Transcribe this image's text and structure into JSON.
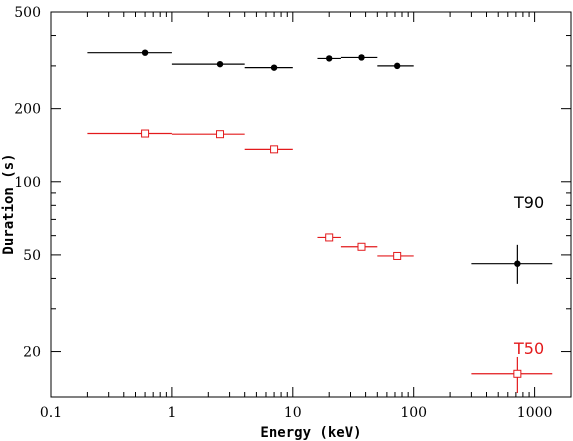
{
  "chart_data": {
    "type": "scatter",
    "title": "",
    "xlabel": "Energy (keV)",
    "ylabel": "Duration (s)",
    "xscale": "log",
    "yscale": "log",
    "xlim": [
      0.1,
      2000
    ],
    "ylim": [
      13,
      500
    ],
    "x_ticks": [
      0.1,
      1,
      10,
      100,
      1000
    ],
    "x_tick_labels": [
      "0.1",
      "1",
      "10",
      "100",
      "1000"
    ],
    "y_ticks": [
      20,
      50,
      100,
      200,
      500
    ],
    "y_tick_labels": [
      "20",
      "50",
      "100",
      "200",
      "500"
    ],
    "grid": false,
    "legend": "none",
    "series": [
      {
        "name": "T90",
        "color": "#000000",
        "marker": "filled-circle",
        "points": [
          {
            "x": 0.6,
            "y": 340,
            "xlo": 0.2,
            "xhi": 1.0,
            "ylo": 340,
            "yhi": 340
          },
          {
            "x": 2.5,
            "y": 305,
            "xlo": 1.0,
            "xhi": 4.0,
            "ylo": 305,
            "yhi": 305
          },
          {
            "x": 7.0,
            "y": 295,
            "xlo": 4.0,
            "xhi": 10.0,
            "ylo": 295,
            "yhi": 295
          },
          {
            "x": 20,
            "y": 322,
            "xlo": 16,
            "xhi": 25,
            "ylo": 322,
            "yhi": 322
          },
          {
            "x": 37,
            "y": 325,
            "xlo": 25,
            "xhi": 50,
            "ylo": 325,
            "yhi": 325
          },
          {
            "x": 73,
            "y": 300,
            "xlo": 50,
            "xhi": 100,
            "ylo": 300,
            "yhi": 300
          },
          {
            "x": 720,
            "y": 46,
            "xlo": 300,
            "xhi": 1400,
            "ylo": 38,
            "yhi": 55
          }
        ]
      },
      {
        "name": "T50",
        "color": "#e31a1c",
        "marker": "open-square",
        "points": [
          {
            "x": 0.6,
            "y": 158,
            "xlo": 0.2,
            "xhi": 1.0,
            "ylo": 158,
            "yhi": 158
          },
          {
            "x": 2.5,
            "y": 157,
            "xlo": 1.0,
            "xhi": 4.0,
            "ylo": 157,
            "yhi": 157
          },
          {
            "x": 7.0,
            "y": 136,
            "xlo": 4.0,
            "xhi": 10.0,
            "ylo": 136,
            "yhi": 136
          },
          {
            "x": 20,
            "y": 59,
            "xlo": 16,
            "xhi": 25,
            "ylo": 59,
            "yhi": 59
          },
          {
            "x": 37,
            "y": 54,
            "xlo": 25,
            "xhi": 50,
            "ylo": 54,
            "yhi": 54
          },
          {
            "x": 73,
            "y": 49.5,
            "xlo": 50,
            "xhi": 100,
            "ylo": 49.5,
            "yhi": 49.5
          },
          {
            "x": 720,
            "y": 16.2,
            "xlo": 300,
            "xhi": 1400,
            "ylo": 13.5,
            "yhi": 19
          }
        ]
      }
    ],
    "annotations": [
      {
        "text": "T90",
        "color": "#000000",
        "x": 900,
        "y": 78
      },
      {
        "text": "T50",
        "color": "#e31a1c",
        "x": 900,
        "y": 19.5
      }
    ]
  }
}
